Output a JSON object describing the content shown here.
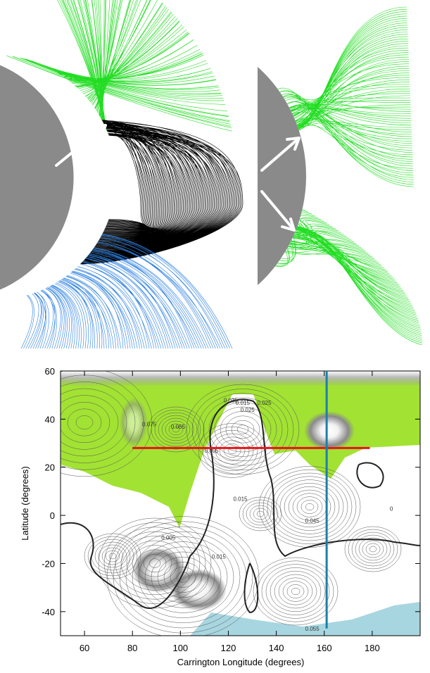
{
  "chart_data": {
    "type": "contour",
    "xlabel": "Carrington Longitude (degrees)",
    "ylabel": "Latitude (degrees)",
    "xlim": [
      50,
      200
    ],
    "ylim": [
      -50,
      60
    ],
    "xticks": [
      60,
      80,
      100,
      120,
      140,
      160,
      180
    ],
    "yticks": [
      -40,
      -20,
      0,
      20,
      40,
      60
    ],
    "lines": [
      {
        "color": "#e8141c",
        "x": [
          80,
          179
        ],
        "y": [
          28,
          28
        ]
      },
      {
        "color": "#1a7fa8",
        "x": [
          161,
          161
        ],
        "y": [
          -47,
          60
        ]
      }
    ],
    "annotations": [
      {
        "text": "0.075",
        "x": 87,
        "y": 37
      },
      {
        "text": "0.065",
        "x": 99,
        "y": 36
      },
      {
        "text": "0.035",
        "x": 121,
        "y": 47
      },
      {
        "text": "0.015",
        "x": 126,
        "y": 46
      },
      {
        "text": "0.025",
        "x": 135,
        "y": 46
      },
      {
        "text": "0.025",
        "x": 128,
        "y": 43
      },
      {
        "text": "0.015",
        "x": 125,
        "y": 6
      },
      {
        "text": "0.045",
        "x": 155,
        "y": -3
      },
      {
        "text": "0.005",
        "x": 113,
        "y": 26
      },
      {
        "text": "0.015",
        "x": 116,
        "y": -18
      },
      {
        "text": "0.005",
        "x": 95,
        "y": -10
      },
      {
        "text": "0.055",
        "x": 155,
        "y": -48
      },
      {
        "text": "0",
        "x": 188,
        "y": 2
      }
    ]
  }
}
